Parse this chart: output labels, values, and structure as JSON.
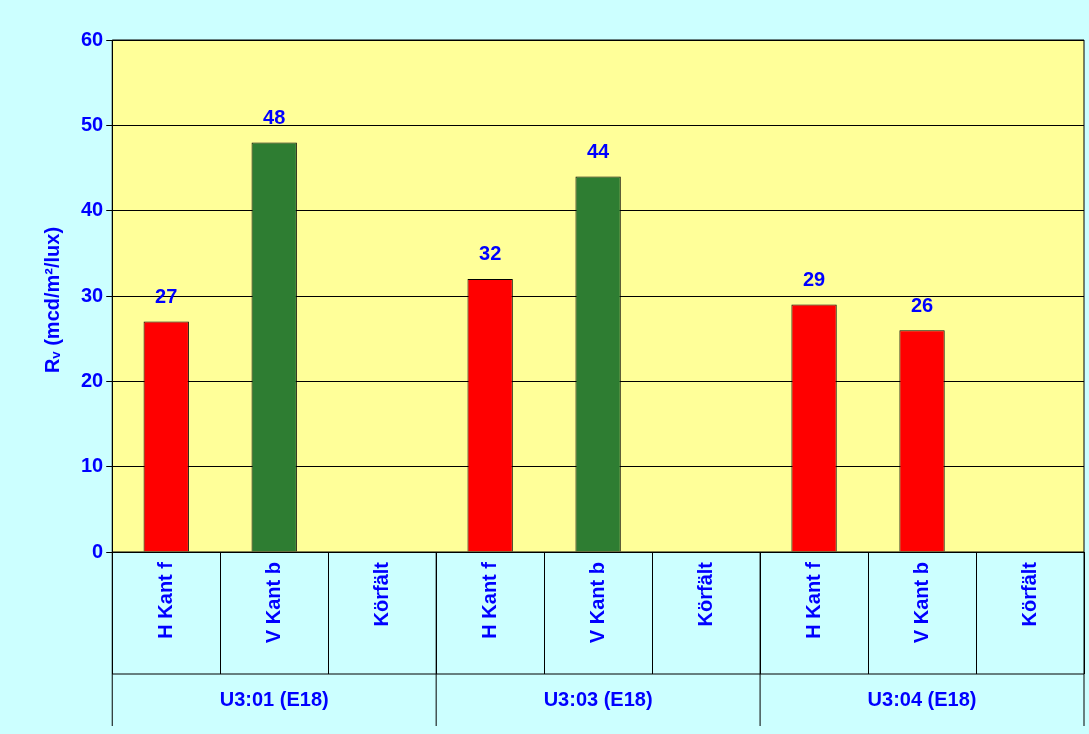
{
  "chart_data": {
    "type": "bar",
    "ylabel": "Rᵥ (mcd/m²/lux)",
    "categories": [
      "H Kant f",
      "V Kant b",
      "Körfält",
      "H Kant f",
      "V Kant b",
      "Körfält",
      "H Kant f",
      "V Kant b",
      "Körfält"
    ],
    "values": [
      27,
      48,
      null,
      32,
      44,
      null,
      29,
      26,
      null
    ],
    "colors": [
      "#ff0000",
      "#2e7d32",
      "#ff0000",
      "#ff0000",
      "#2e7d32",
      "#ff0000",
      "#ff0000",
      "#ff0000",
      "#ff0000"
    ],
    "ylim": [
      0,
      60
    ],
    "yticks": [
      0,
      10,
      20,
      30,
      40,
      50,
      60
    ],
    "grid": "y",
    "legend": false,
    "data_labels": true,
    "annotations": [
      "U3:01 (E18)",
      "U3:03 (E18)",
      "U3:04 (E18)"
    ]
  }
}
